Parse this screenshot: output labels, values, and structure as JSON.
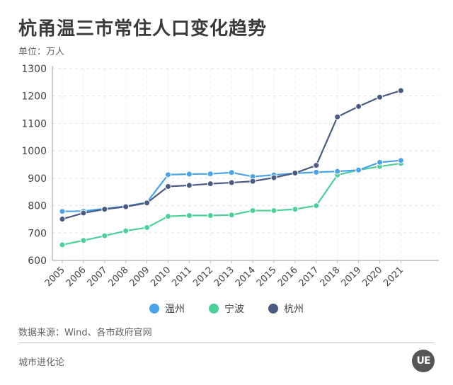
{
  "header": {
    "title": "杭甬温三市常住人口变化趋势",
    "unit": "单位：万人"
  },
  "legend": [
    {
      "label": "温州",
      "color": "#4aa3e8"
    },
    {
      "label": "宁波",
      "color": "#4dcf9a"
    },
    {
      "label": "杭州",
      "color": "#4a5a80"
    }
  ],
  "footer": {
    "source": "数据来源：Wind、各市政府官网",
    "brand": "城市进化论",
    "logo_text": "UE"
  },
  "chart_data": {
    "type": "line",
    "title": "杭甬温三市常住人口变化趋势",
    "subtitle": "单位：万人",
    "xlabel": "",
    "ylabel": "万人",
    "ylim": [
      600,
      1300
    ],
    "yticks": [
      600,
      700,
      800,
      900,
      1000,
      1100,
      1200,
      1300
    ],
    "grid": true,
    "legend_position": "bottom",
    "categories": [
      "2005",
      "2006",
      "2007",
      "2008",
      "2009",
      "2010",
      "2011",
      "2012",
      "2013",
      "2014",
      "2015",
      "2016",
      "2017",
      "2018",
      "2019",
      "2020",
      "2021"
    ],
    "series": [
      {
        "name": "温州",
        "color": "#4aa3e8",
        "values": [
          779,
          780,
          789,
          798,
          812,
          913,
          915,
          916,
          921,
          906,
          912,
          918,
          922,
          925,
          930,
          958,
          965
        ]
      },
      {
        "name": "宁波",
        "color": "#4dcf9a",
        "values": [
          657,
          673,
          690,
          708,
          720,
          761,
          764,
          764,
          766,
          782,
          782,
          787,
          800,
          912,
          930,
          943,
          954
        ]
      },
      {
        "name": "杭州",
        "color": "#4a5a80",
        "values": [
          751,
          773,
          787,
          796,
          810,
          870,
          874,
          880,
          884,
          889,
          902,
          919,
          947,
          1124,
          1162,
          1196,
          1220
        ]
      }
    ]
  }
}
